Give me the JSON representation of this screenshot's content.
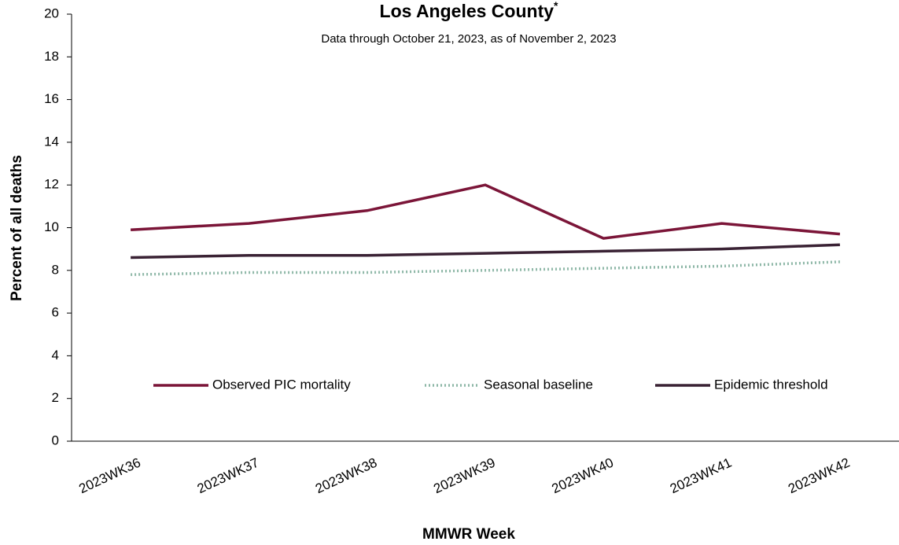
{
  "chart_data": {
    "type": "line",
    "title": "Los Angeles County",
    "title_marker": "*",
    "subtitle": "Data through October 21, 2023, as of November 2, 2023",
    "x_label": "MMWR Week",
    "y_label": "Percent of all deaths",
    "categories": [
      "2023WK36",
      "2023WK37",
      "2023WK38",
      "2023WK39",
      "2023WK40",
      "2023WK41",
      "2023WK42"
    ],
    "series": [
      {
        "name": "Observed PIC mortality",
        "color": "#7b1538",
        "style": "solid",
        "values": [
          9.9,
          10.2,
          10.8,
          12.0,
          9.5,
          10.2,
          9.7
        ]
      },
      {
        "name": "Seasonal baseline",
        "color": "#8fb8a8",
        "style": "dotted",
        "values": [
          7.8,
          7.9,
          7.9,
          8.0,
          8.1,
          8.2,
          8.4
        ]
      },
      {
        "name": "Epidemic threshold",
        "color": "#3a2234",
        "style": "solid",
        "values": [
          8.6,
          8.7,
          8.7,
          8.8,
          8.9,
          9.0,
          9.2
        ]
      }
    ],
    "ylim": [
      0,
      20
    ],
    "yticks": [
      0,
      2,
      4,
      6,
      8,
      10,
      12,
      14,
      16,
      18,
      20
    ],
    "grid": false
  }
}
